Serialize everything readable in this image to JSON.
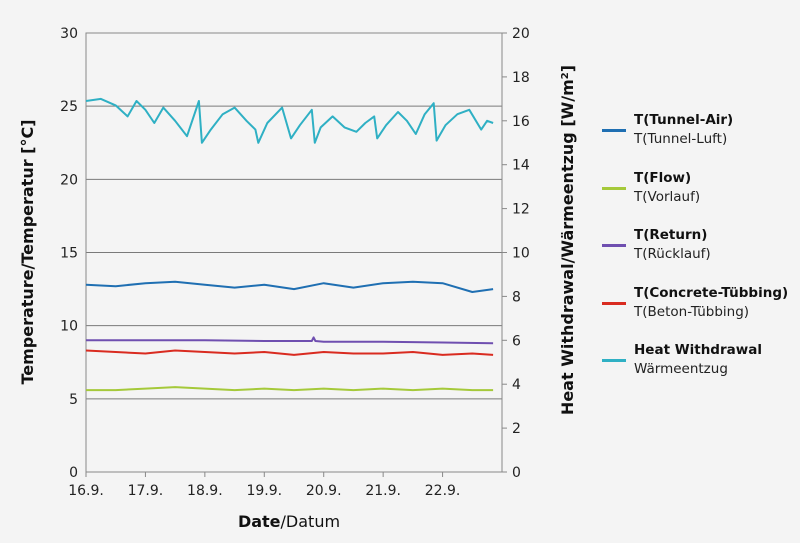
{
  "chart_data": {
    "type": "line",
    "xlabel_bold": "Date",
    "xlabel_rest": "/Datum",
    "ylabel_left": "Temperature/Temperatur [°C]",
    "ylabel_right_main": "Heat Withdrawal/Wärmeentzug [W/m",
    "ylabel_right_sup": "2",
    "ylabel_right_end": "]",
    "x_tick_labels": [
      "16.9.",
      "17.9.",
      "18.9.",
      "19.9.",
      "20.9.",
      "21.9.",
      "22.9."
    ],
    "x_range_days": [
      16,
      23
    ],
    "ylim_left": [
      0,
      30
    ],
    "left_ticks": [
      0,
      5,
      10,
      15,
      20,
      25,
      30
    ],
    "ylim_right": [
      0,
      20
    ],
    "right_ticks": [
      0,
      2,
      4,
      6,
      8,
      10,
      12,
      14,
      16,
      18,
      20
    ],
    "gridlines_left": [
      5,
      10,
      15,
      20,
      25
    ],
    "legend_position": "right",
    "series": [
      {
        "name": "T(Tunnel-Air)",
        "name_de": "T(Tunnel-Luft)",
        "color": "#1f6fb2",
        "axis": "left",
        "x": [
          16.0,
          16.5,
          17.0,
          17.5,
          18.0,
          18.5,
          19.0,
          19.5,
          20.0,
          20.5,
          21.0,
          21.5,
          22.0,
          22.5,
          22.85
        ],
        "y": [
          12.8,
          12.7,
          12.9,
          13.0,
          12.8,
          12.6,
          12.8,
          12.5,
          12.9,
          12.6,
          12.9,
          13.0,
          12.9,
          12.3,
          12.5
        ]
      },
      {
        "name": "T(Flow)",
        "name_de": "T(Vorlauf)",
        "color": "#a5c93a",
        "axis": "left",
        "x": [
          16.0,
          16.5,
          17.0,
          17.5,
          18.0,
          18.5,
          19.0,
          19.5,
          20.0,
          20.5,
          21.0,
          21.5,
          22.0,
          22.5,
          22.85
        ],
        "y": [
          5.6,
          5.6,
          5.7,
          5.8,
          5.7,
          5.6,
          5.7,
          5.6,
          5.7,
          5.6,
          5.7,
          5.6,
          5.7,
          5.6,
          5.6
        ]
      },
      {
        "name": "T(Return)",
        "name_de": "T(Rücklauf)",
        "color": "#6f4fb0",
        "axis": "left",
        "x": [
          16.0,
          17.0,
          18.0,
          19.0,
          19.8,
          19.83,
          19.86,
          20.0,
          21.0,
          22.0,
          22.85
        ],
        "y": [
          9.0,
          9.0,
          9.0,
          8.95,
          8.95,
          9.2,
          8.95,
          8.9,
          8.9,
          8.85,
          8.8
        ]
      },
      {
        "name": "T(Concrete-Tübbing)",
        "name_de": "T(Beton-Tübbing)",
        "color": "#d92b20",
        "axis": "left",
        "x": [
          16.0,
          16.5,
          17.0,
          17.5,
          18.0,
          18.5,
          19.0,
          19.5,
          20.0,
          20.5,
          21.0,
          21.5,
          22.0,
          22.5,
          22.85
        ],
        "y": [
          8.3,
          8.2,
          8.1,
          8.3,
          8.2,
          8.1,
          8.2,
          8.0,
          8.2,
          8.1,
          8.1,
          8.2,
          8.0,
          8.1,
          8.0
        ]
      },
      {
        "name": "Heat Withdrawal",
        "name_de": "Wärmeentzug",
        "color": "#2fb0c4",
        "axis": "right",
        "x": [
          16.0,
          16.25,
          16.5,
          16.7,
          16.85,
          17.0,
          17.15,
          17.3,
          17.5,
          17.7,
          17.9,
          17.95,
          18.1,
          18.3,
          18.5,
          18.7,
          18.85,
          18.9,
          19.05,
          19.3,
          19.45,
          19.6,
          19.8,
          19.85,
          19.95,
          20.15,
          20.35,
          20.55,
          20.7,
          20.85,
          20.9,
          21.05,
          21.25,
          21.4,
          21.55,
          21.7,
          21.85,
          21.9,
          22.05,
          22.25,
          22.45,
          22.65,
          22.75,
          22.85
        ],
        "y": [
          16.9,
          17.0,
          16.7,
          16.2,
          16.9,
          16.5,
          15.9,
          16.6,
          16.0,
          15.3,
          16.9,
          15.0,
          15.6,
          16.3,
          16.6,
          16.0,
          15.6,
          15.0,
          15.9,
          16.6,
          15.2,
          15.8,
          16.5,
          15.0,
          15.7,
          16.2,
          15.7,
          15.5,
          15.9,
          16.2,
          15.2,
          15.8,
          16.4,
          16.0,
          15.4,
          16.3,
          16.8,
          15.1,
          15.8,
          16.3,
          16.5,
          15.6,
          16.0,
          15.9
        ]
      }
    ]
  }
}
